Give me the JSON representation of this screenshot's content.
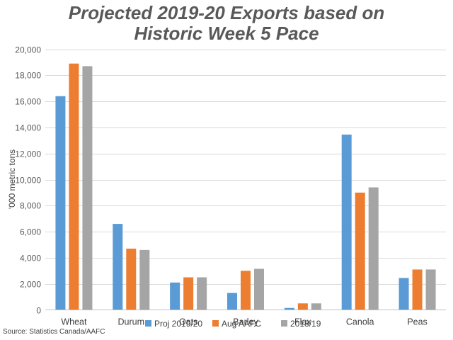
{
  "chart_data": {
    "type": "bar",
    "title_lines": [
      "Projected 2019-20 Exports based on",
      "Historic Week 5 Pace"
    ],
    "ylabel": "'000 metric tons",
    "xlabel": "",
    "ylim": [
      0,
      20000
    ],
    "yticks": [
      0,
      2000,
      4000,
      6000,
      8000,
      10000,
      12000,
      14000,
      16000,
      18000,
      20000
    ],
    "ytick_labels": [
      "0",
      "2,000",
      "4,000",
      "6,000",
      "8,000",
      "10,000",
      "12,000",
      "14,000",
      "16,000",
      "18,000",
      "20,000"
    ],
    "grid": true,
    "legend_position": "bottom",
    "categories": [
      "Wheat",
      "Durum",
      "Oats",
      "Barley",
      "Flax",
      "Canola",
      "Peas"
    ],
    "series": [
      {
        "name": "Proj 2019/20",
        "color": "#5b9bd5",
        "values": [
          16400,
          6600,
          2100,
          1300,
          150,
          13450,
          2450
        ]
      },
      {
        "name": "Aug AAFC",
        "color": "#ed7d31",
        "values": [
          18900,
          4700,
          2500,
          3000,
          500,
          9000,
          3100
        ]
      },
      {
        "name": "2018/19",
        "color": "#a5a5a5",
        "values": [
          18700,
          4600,
          2500,
          3150,
          500,
          9400,
          3100
        ]
      }
    ],
    "source": "Source: Statistics Canada/AAFC"
  }
}
